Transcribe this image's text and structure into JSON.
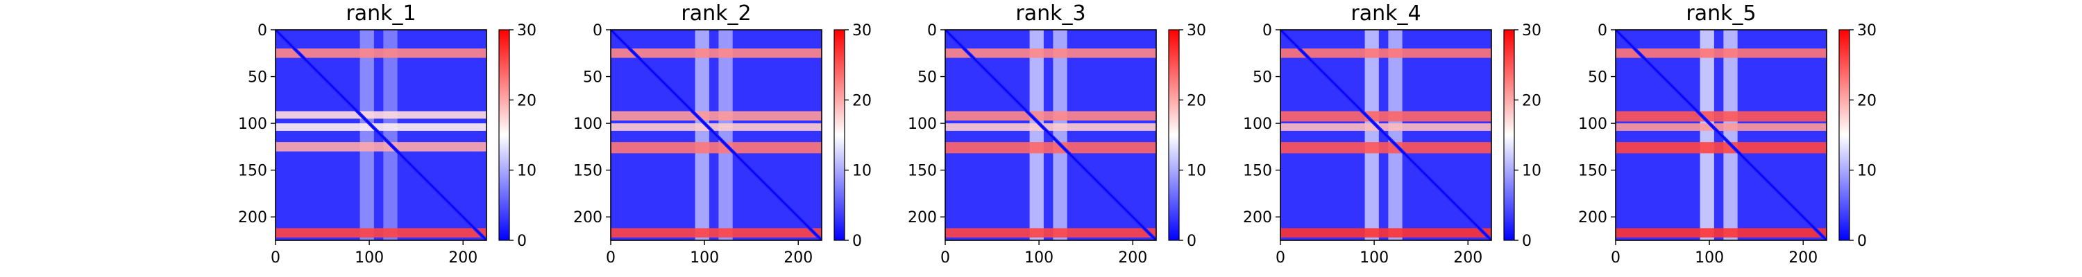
{
  "chart_data": {
    "type": "heatmap",
    "colormap": [
      "#0000ff",
      "#ffffff",
      "#ff0000"
    ],
    "axes": {
      "x": {
        "range": [
          0,
          225
        ],
        "ticks": [
          0,
          100,
          200
        ],
        "tick_labels": [
          "0",
          "100",
          "200"
        ]
      },
      "y": {
        "range": [
          0,
          225
        ],
        "inverted": true,
        "ticks": [
          0,
          50,
          100,
          150,
          200
        ],
        "tick_labels": [
          "0",
          "50",
          "100",
          "150",
          "200"
        ]
      }
    },
    "colorbar": {
      "range": [
        0,
        30
      ],
      "ticks": [
        0,
        10,
        20,
        30
      ],
      "tick_labels": [
        "0",
        "10",
        "20",
        "30"
      ]
    },
    "panels": [
      {
        "title": "rank_1",
        "diagonal_value": 2,
        "background_value": 3,
        "row_bands": [
          {
            "y": [
              20,
              30
            ],
            "value": 22
          },
          {
            "y": [
              87,
              95
            ],
            "value": 17
          },
          {
            "y": [
              100,
              108
            ],
            "value": 16
          },
          {
            "y": [
              120,
              130
            ],
            "value": 20
          },
          {
            "y": [
              212,
              222
            ],
            "value": 26
          }
        ],
        "col_bands": [
          {
            "x": [
              90,
              105
            ],
            "value": 9
          },
          {
            "x": [
              115,
              130
            ],
            "value": 8
          }
        ]
      },
      {
        "title": "rank_2",
        "diagonal_value": 2,
        "background_value": 3,
        "row_bands": [
          {
            "y": [
              20,
              30
            ],
            "value": 22
          },
          {
            "y": [
              87,
              97
            ],
            "value": 21
          },
          {
            "y": [
              100,
              108
            ],
            "value": 18
          },
          {
            "y": [
              120,
              132
            ],
            "value": 23
          },
          {
            "y": [
              212,
              222
            ],
            "value": 26
          }
        ],
        "col_bands": [
          {
            "x": [
              90,
              105
            ],
            "value": 11
          },
          {
            "x": [
              115,
              130
            ],
            "value": 10
          }
        ]
      },
      {
        "title": "rank_3",
        "diagonal_value": 2,
        "background_value": 3,
        "row_bands": [
          {
            "y": [
              20,
              30
            ],
            "value": 22
          },
          {
            "y": [
              87,
              97
            ],
            "value": 22
          },
          {
            "y": [
              100,
              108
            ],
            "value": 18
          },
          {
            "y": [
              120,
              132
            ],
            "value": 24
          },
          {
            "y": [
              212,
              222
            ],
            "value": 26
          }
        ],
        "col_bands": [
          {
            "x": [
              90,
              105
            ],
            "value": 12
          },
          {
            "x": [
              115,
              130
            ],
            "value": 11
          }
        ]
      },
      {
        "title": "rank_4",
        "diagonal_value": 2,
        "background_value": 3,
        "row_bands": [
          {
            "y": [
              20,
              30
            ],
            "value": 23
          },
          {
            "y": [
              87,
              98
            ],
            "value": 24
          },
          {
            "y": [
              100,
              108
            ],
            "value": 19
          },
          {
            "y": [
              120,
              132
            ],
            "value": 25
          },
          {
            "y": [
              212,
              222
            ],
            "value": 27
          }
        ],
        "col_bands": [
          {
            "x": [
              90,
              105
            ],
            "value": 12
          },
          {
            "x": [
              115,
              130
            ],
            "value": 11
          }
        ]
      },
      {
        "title": "rank_5",
        "diagonal_value": 2,
        "background_value": 3,
        "row_bands": [
          {
            "y": [
              20,
              30
            ],
            "value": 23
          },
          {
            "y": [
              87,
              98
            ],
            "value": 25
          },
          {
            "y": [
              100,
              108
            ],
            "value": 21
          },
          {
            "y": [
              120,
              132
            ],
            "value": 26
          },
          {
            "y": [
              212,
              222
            ],
            "value": 27
          }
        ],
        "col_bands": [
          {
            "x": [
              90,
              105
            ],
            "value": 13
          },
          {
            "x": [
              115,
              130
            ],
            "value": 12
          }
        ]
      }
    ]
  }
}
